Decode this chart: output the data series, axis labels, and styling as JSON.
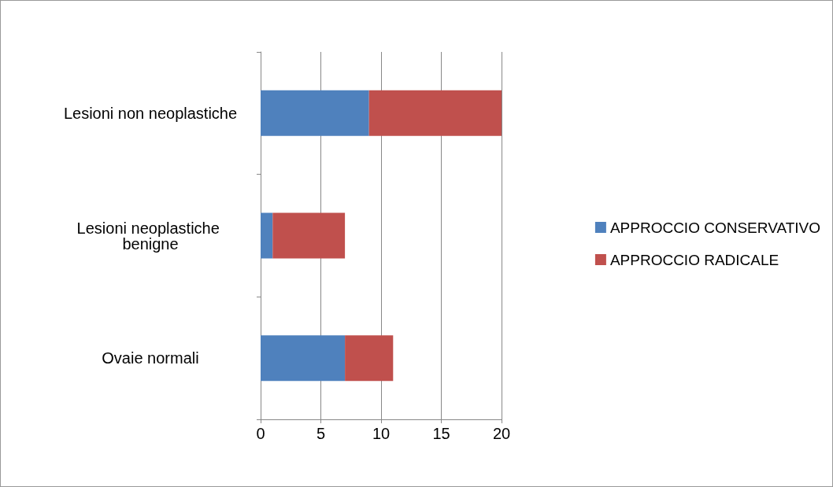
{
  "chart_data": {
    "type": "bar",
    "orientation": "horizontal",
    "stacked": true,
    "categories": [
      "Lesioni non neoplastiche",
      "Lesioni neoplastiche benigne",
      "Ovaie normali"
    ],
    "series": [
      {
        "name": "APPROCCIO CONSERVATIVO",
        "color": "#4f81bd",
        "values": [
          9,
          1,
          7
        ]
      },
      {
        "name": "APPROCCIO RADICALE",
        "color": "#c0504d",
        "values": [
          11,
          6,
          4
        ]
      }
    ],
    "xlim": [
      0,
      20
    ],
    "xticks": [
      0,
      5,
      10,
      15,
      20
    ],
    "grid": "x",
    "legend": "right"
  }
}
